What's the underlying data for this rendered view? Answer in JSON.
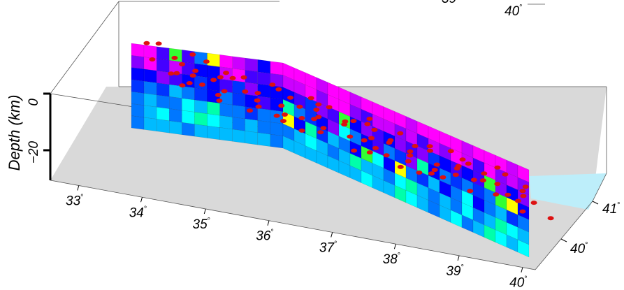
{
  "chart_data": {
    "type": "3d-fence-tomography",
    "zlabel": "Depth (km)",
    "z_ticks": [
      {
        "value": 0,
        "label": "0"
      },
      {
        "value": -20,
        "label": "−20"
      }
    ],
    "x_ticks": [
      {
        "value": 33,
        "label": "33"
      },
      {
        "value": 34,
        "label": "34"
      },
      {
        "value": 35,
        "label": "35"
      },
      {
        "value": 36,
        "label": "36"
      },
      {
        "value": 37,
        "label": "37"
      },
      {
        "value": 38,
        "label": "38"
      },
      {
        "value": 39,
        "label": "39"
      },
      {
        "value": 40,
        "label": "40"
      }
    ],
    "y_ticks": [
      {
        "value": 40,
        "label": "40"
      },
      {
        "value": 41,
        "label": "41"
      }
    ],
    "far_axis_labels": [
      {
        "label": "39"
      },
      {
        "label": "40"
      }
    ],
    "degree_symbol": "°",
    "surface_color": "#d9d9d9",
    "sea_color": "#bdeefa",
    "event_color": "#dd1111",
    "cell_palette": [
      "#ff00ff",
      "#cc00ff",
      "#8800ff",
      "#4400ff",
      "#0000ff",
      "#0033ff",
      "#0077ff",
      "#00bbff",
      "#00ffff",
      "#00ffaa",
      "#33ff33",
      "#ffff00"
    ],
    "fence_grid": {
      "seg1_columns": 12,
      "seg2_columns": 22,
      "rows": 7,
      "row0_values": [
        0,
        0,
        3,
        10,
        3,
        6,
        11,
        0,
        1,
        2,
        4,
        0,
        0,
        0,
        0,
        1,
        0,
        0,
        1,
        0,
        0,
        0,
        0,
        1,
        0,
        0,
        0,
        0,
        1,
        0,
        0,
        0,
        1,
        0
      ],
      "row1_values": [
        2,
        0,
        3,
        1,
        3,
        4,
        4,
        1,
        0,
        3,
        3,
        2,
        1,
        1,
        0,
        2,
        0,
        0,
        2,
        3,
        1,
        1,
        2,
        1,
        3,
        1,
        2,
        0,
        1,
        3,
        0,
        2,
        1,
        2
      ],
      "row2_values": [
        4,
        4,
        2,
        3,
        4,
        5,
        4,
        3,
        5,
        2,
        4,
        4,
        4,
        3,
        5,
        2,
        3,
        10,
        4,
        2,
        3,
        4,
        2,
        3,
        2,
        5,
        4,
        3,
        4,
        3,
        10,
        2,
        4,
        2
      ],
      "row3_values": [
        5,
        6,
        5,
        7,
        6,
        5,
        4,
        6,
        5,
        4,
        3,
        4,
        9,
        6,
        5,
        4,
        2,
        8,
        6,
        4,
        3,
        6,
        5,
        2,
        9,
        4,
        6,
        5,
        6,
        5,
        6,
        10,
        11,
        4
      ],
      "row4_values": [
        6,
        7,
        6,
        6,
        8,
        7,
        9,
        6,
        6,
        5,
        6,
        6,
        11,
        4,
        9,
        5,
        7,
        6,
        4,
        10,
        8,
        4,
        11,
        6,
        5,
        7,
        4,
        6,
        8,
        4,
        6,
        7,
        5,
        6
      ],
      "row5_values": [
        6,
        7,
        8,
        6,
        8,
        9,
        8,
        7,
        6,
        7,
        6,
        6,
        6,
        7,
        8,
        7,
        6,
        7,
        9,
        7,
        7,
        6,
        8,
        9,
        7,
        6,
        7,
        6,
        8,
        6,
        7,
        9,
        8,
        7
      ],
      "row6_values": [
        6,
        7,
        7,
        7,
        6,
        7,
        7,
        7,
        7,
        7,
        7,
        6,
        7,
        7,
        7,
        7,
        7,
        7,
        7,
        8,
        7,
        7,
        9,
        8,
        7,
        6,
        7,
        8,
        6,
        7,
        9,
        8,
        7,
        8
      ]
    },
    "events": [
      [
        0.17,
        0.5
      ],
      [
        0.12,
        0.72
      ],
      [
        0.36,
        0.08
      ],
      [
        0.6,
        0.95
      ],
      [
        0.8,
        0.4
      ],
      [
        0.24,
        0.28
      ],
      [
        0.5,
        0.66
      ],
      [
        0.94,
        0.18
      ],
      [
        0.05,
        0.92
      ],
      [
        0.44,
        0.46
      ],
      [
        0.31,
        0.88
      ],
      [
        0.68,
        0.12
      ],
      [
        0.86,
        0.76
      ],
      [
        0.09,
        0.31
      ],
      [
        0.55,
        0.24
      ],
      [
        0.73,
        0.56
      ],
      [
        0.27,
        0.61
      ],
      [
        0.41,
        0.82
      ],
      [
        0.19,
        0.11
      ],
      [
        0.63,
        0.38
      ],
      [
        0.97,
        0.62
      ],
      [
        0.13,
        0.44
      ],
      [
        0.47,
        0.15
      ],
      [
        0.58,
        0.79
      ],
      [
        0.84,
        0.25
      ],
      [
        0.34,
        0.52
      ],
      [
        0.78,
        0.91
      ],
      [
        0.06,
        0.67
      ],
      [
        0.52,
        0.33
      ],
      [
        0.71,
        0.71
      ],
      [
        0.22,
        0.93
      ],
      [
        0.89,
        0.49
      ],
      [
        0.39,
        0.24
      ],
      [
        0.66,
        0.58
      ],
      [
        0.15,
        0.83
      ],
      [
        0.93,
        0.08
      ],
      [
        0.48,
        0.97
      ],
      [
        0.75,
        0.17
      ],
      [
        0.29,
        0.42
      ],
      [
        0.57,
        0.5
      ],
      [
        0.82,
        0.6
      ],
      [
        0.03,
        0.2
      ],
      [
        0.43,
        0.69
      ],
      [
        0.61,
        0.04
      ],
      [
        0.99,
        0.85
      ],
      [
        0.26,
        0.75
      ],
      [
        0.7,
        0.3
      ],
      [
        0.11,
        0.58
      ],
      [
        0.53,
        0.87
      ],
      [
        0.87,
        0.35
      ],
      [
        0.37,
        0.14
      ],
      [
        0.64,
        0.74
      ],
      [
        0.2,
        0.37
      ],
      [
        0.91,
        0.94
      ],
      [
        0.45,
        0.3
      ],
      [
        0.77,
        0.64
      ],
      [
        0.08,
        0.8
      ],
      [
        0.59,
        0.19
      ],
      [
        0.33,
        0.71
      ],
      [
        0.96,
        0.43
      ],
      [
        0.16,
        0.06
      ],
      [
        0.69,
        0.83
      ],
      [
        0.42,
        0.55
      ],
      [
        0.81,
        0.1
      ],
      [
        0.25,
        0.5
      ],
      [
        0.54,
        0.62
      ],
      [
        0.92,
        0.72
      ],
      [
        0.1,
        0.4
      ],
      [
        0.62,
        0.45
      ],
      [
        0.35,
        0.95
      ],
      [
        0.74,
        0.28
      ],
      [
        0.01,
        0.55
      ],
      [
        0.5,
        0.12
      ],
      [
        0.85,
        0.53
      ],
      [
        0.28,
        0.16
      ],
      [
        0.65,
        0.92
      ],
      [
        0.18,
        0.68
      ],
      [
        0.98,
        0.3
      ],
      [
        0.4,
        0.38
      ],
      [
        0.72,
        0.82
      ],
      [
        0.07,
        0.1
      ],
      [
        0.56,
        0.71
      ],
      [
        0.83,
        0.2
      ],
      [
        0.3,
        0.81
      ],
      [
        0.9,
        0.66
      ],
      [
        0.46,
        0.06
      ],
      [
        0.67,
        0.48
      ],
      [
        0.14,
        0.96
      ],
      [
        0.6,
        0.27
      ],
      [
        0.38,
        0.64
      ],
      [
        0.79,
        0.47
      ],
      [
        0.23,
        0.21
      ],
      [
        0.95,
        0.55
      ],
      [
        0.51,
        0.41
      ],
      [
        0.04,
        0.73
      ]
    ]
  }
}
